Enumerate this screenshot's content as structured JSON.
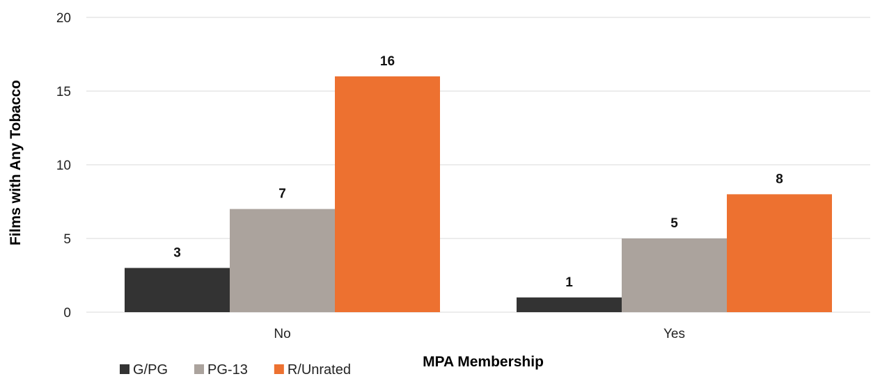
{
  "chart_data": {
    "type": "bar",
    "title": "",
    "xlabel": "MPA Membership",
    "ylabel": "Films with Any Tobacco",
    "categories": [
      "No",
      "Yes"
    ],
    "ylim": [
      0,
      20
    ],
    "yticks": [
      0,
      5,
      10,
      15,
      20
    ],
    "grid": true,
    "legend": "bottom-left",
    "series": [
      {
        "name": "G/PG",
        "values": [
          3,
          1
        ],
        "color": "#333333"
      },
      {
        "name": "PG-13",
        "values": [
          7,
          5
        ],
        "color": "#aba39d"
      },
      {
        "name": "R/Unrated",
        "values": [
          16,
          8
        ],
        "color": "#ed7130"
      }
    ]
  }
}
